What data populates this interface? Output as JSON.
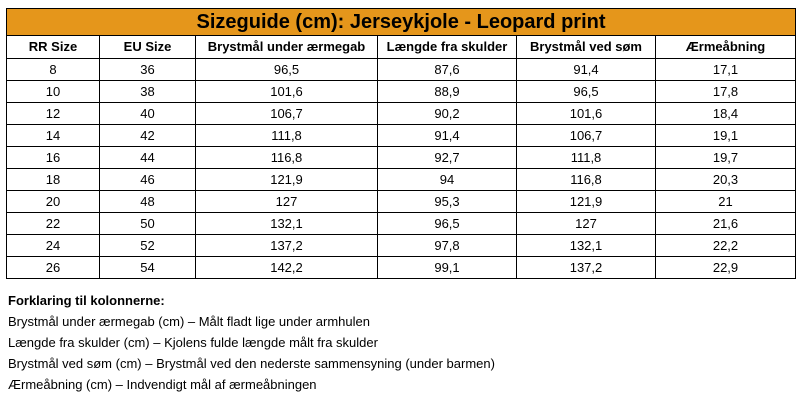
{
  "title": "Sizeguide (cm): Jerseykjole - Leopard print",
  "colors": {
    "title_bg": "#e5961b"
  },
  "columns": [
    "RR Size",
    "EU Size",
    "Brystmål under ærmegab",
    "Længde fra skulder",
    "Brystmål ved søm",
    "Ærmeåbning"
  ],
  "rows": [
    [
      "8",
      "36",
      "96,5",
      "87,6",
      "91,4",
      "17,1"
    ],
    [
      "10",
      "38",
      "101,6",
      "88,9",
      "96,5",
      "17,8"
    ],
    [
      "12",
      "40",
      "106,7",
      "90,2",
      "101,6",
      "18,4"
    ],
    [
      "14",
      "42",
      "111,8",
      "91,4",
      "106,7",
      "19,1"
    ],
    [
      "16",
      "44",
      "116,8",
      "92,7",
      "111,8",
      "19,7"
    ],
    [
      "18",
      "46",
      "121,9",
      "94",
      "116,8",
      "20,3"
    ],
    [
      "20",
      "48",
      "127",
      "95,3",
      "121,9",
      "21"
    ],
    [
      "22",
      "50",
      "132,1",
      "96,5",
      "127",
      "21,6"
    ],
    [
      "24",
      "52",
      "137,2",
      "97,8",
      "132,1",
      "22,2"
    ],
    [
      "26",
      "54",
      "142,2",
      "99,1",
      "137,2",
      "22,9"
    ]
  ],
  "legend": {
    "heading": "Forklaring til kolonnerne:",
    "lines": [
      "Brystmål under ærmegab (cm) – Målt fladt lige under armhulen",
      "Længde fra skulder (cm) – Kjolens fulde længde målt fra skulder",
      "Brystmål ved søm (cm) – Brystmål ved den nederste sammensyning (under barmen)",
      "Ærmeåbning (cm) – Indvendigt mål af ærmeåbningen"
    ]
  }
}
